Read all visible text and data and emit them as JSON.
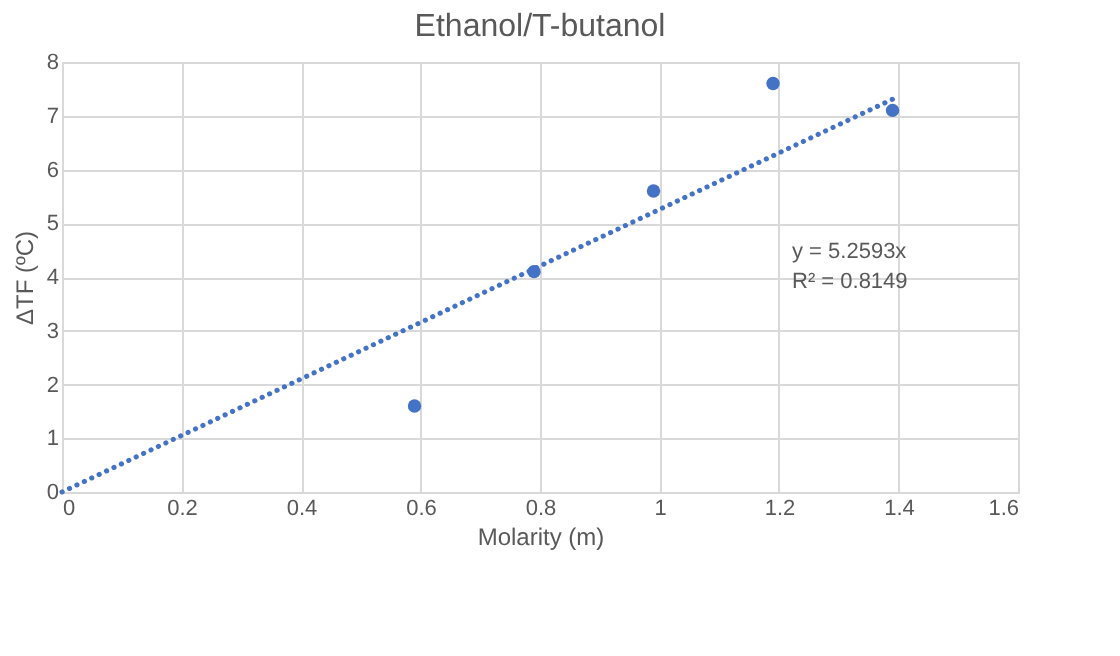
{
  "chart_data": {
    "type": "scatter",
    "title": "Ethanol/T-butanol",
    "xlabel": "Molarity (m)",
    "ylabel": "ΔTF (ºC)",
    "xlim": [
      0,
      1.6
    ],
    "xticks": [
      0,
      0.2,
      0.4,
      0.6,
      0.8,
      1,
      1.2,
      1.4,
      1.6
    ],
    "ylim": [
      0,
      8
    ],
    "yticks": [
      0,
      1,
      2,
      3,
      4,
      5,
      6,
      7,
      8
    ],
    "grid": true,
    "marker": "circle",
    "series": [
      {
        "color": "#4472c4",
        "x": [
          0.59,
          0.79,
          0.99,
          1.19,
          1.39
        ],
        "values": [
          1.6,
          4.1,
          5.6,
          7.6,
          7.1
        ]
      },
      {
        "type": "line",
        "color": "#4472c4",
        "line_style": "dotted",
        "x": [
          0,
          1.4
        ],
        "values": [
          0,
          7.36
        ],
        "marker": "none"
      }
    ],
    "annotations": [
      "y = 5.2593x",
      "R² = 0.8149"
    ]
  }
}
